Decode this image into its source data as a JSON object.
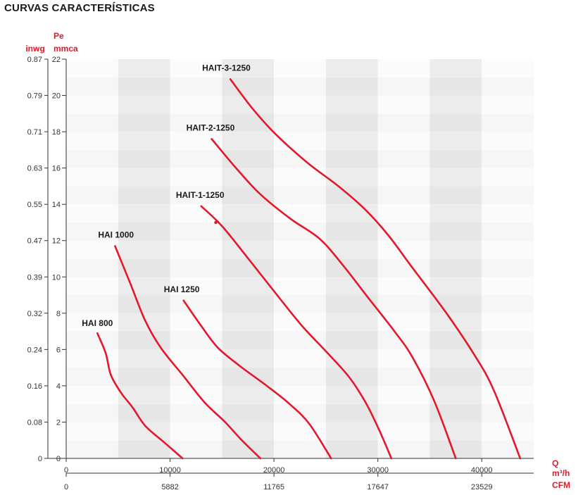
{
  "page_title": "CURVAS CARACTERÍSTICAS",
  "chart_data": {
    "type": "line",
    "y_left_unit": "inwg",
    "y_right_unit_top": "Pe",
    "y_right_unit_bottom": "mmca",
    "x_unit_top": "Q",
    "x_unit_mid": "m³/h",
    "x_unit_bottom": "CFM",
    "xlim": [
      0,
      45000
    ],
    "ylim": [
      0,
      22
    ],
    "grid": true,
    "y_ticks": [
      {
        "value": 0,
        "label": "0",
        "inwg": "0"
      },
      {
        "value": 2,
        "label": "2",
        "inwg": "0.08"
      },
      {
        "value": 4,
        "label": "4",
        "inwg": "0.16"
      },
      {
        "value": 6,
        "label": "6",
        "inwg": "0.24"
      },
      {
        "value": 8,
        "label": "8",
        "inwg": "0.32"
      },
      {
        "value": 10,
        "label": "10",
        "inwg": "0.39"
      },
      {
        "value": 12,
        "label": "12",
        "inwg": "0.47"
      },
      {
        "value": 14,
        "label": "14",
        "inwg": "0.55"
      },
      {
        "value": 16,
        "label": "16",
        "inwg": "0.63"
      },
      {
        "value": 18,
        "label": "18",
        "inwg": "0.71"
      },
      {
        "value": 20,
        "label": "20",
        "inwg": "0.79"
      },
      {
        "value": 22,
        "label": "22",
        "inwg": "0.87"
      }
    ],
    "x_ticks": [
      {
        "value": 0,
        "label": "0",
        "cfm": "0"
      },
      {
        "value": 10000,
        "label": "10000",
        "cfm": "5882"
      },
      {
        "value": 20000,
        "label": "20000",
        "cfm": "11765"
      },
      {
        "value": 30000,
        "label": "30000",
        "cfm": "17647"
      },
      {
        "value": 40000,
        "label": "40000",
        "cfm": "23529"
      }
    ],
    "series": [
      {
        "name": "HAI 800",
        "color": "#e3182d",
        "points": [
          [
            3000,
            6.9
          ],
          [
            3800,
            5.8
          ],
          [
            4300,
            4.6
          ],
          [
            5300,
            3.6
          ],
          [
            6400,
            2.8
          ],
          [
            7600,
            1.8
          ],
          [
            9400,
            0.9
          ],
          [
            11200,
            0
          ]
        ]
      },
      {
        "name": "HAI 1000",
        "color": "#e3182d",
        "points": [
          [
            4700,
            11.7
          ],
          [
            6200,
            9.6
          ],
          [
            7600,
            7.6
          ],
          [
            9100,
            6.1
          ],
          [
            11200,
            4.6
          ],
          [
            13300,
            3.1
          ],
          [
            15300,
            2.0
          ],
          [
            16900,
            1.0
          ],
          [
            18700,
            0
          ]
        ]
      },
      {
        "name": "HAI 1250",
        "color": "#e3182d",
        "points": [
          [
            11300,
            8.7
          ],
          [
            13000,
            7.3
          ],
          [
            14600,
            6.1
          ],
          [
            16700,
            5.1
          ],
          [
            19300,
            4.0
          ],
          [
            21500,
            3.0
          ],
          [
            23400,
            1.9
          ],
          [
            25500,
            0
          ]
        ]
      },
      {
        "name": "HAIT-1-1250",
        "color": "#e3182d",
        "points": [
          [
            13000,
            13.9
          ],
          [
            15000,
            12.8
          ],
          [
            17400,
            11.1
          ],
          [
            20300,
            9.0
          ],
          [
            22700,
            7.3
          ],
          [
            25000,
            5.9
          ],
          [
            27200,
            4.5
          ],
          [
            28800,
            3.1
          ],
          [
            30100,
            1.6
          ],
          [
            31300,
            0
          ]
        ]
      },
      {
        "name": "HAIT-2-1250",
        "color": "#e3182d",
        "points": [
          [
            14000,
            17.6
          ],
          [
            16200,
            16.1
          ],
          [
            18600,
            14.6
          ],
          [
            21600,
            13.2
          ],
          [
            24400,
            12.1
          ],
          [
            26700,
            10.6
          ],
          [
            29000,
            8.9
          ],
          [
            31600,
            7.0
          ],
          [
            33300,
            5.6
          ],
          [
            35400,
            3.2
          ],
          [
            37500,
            0
          ]
        ]
      },
      {
        "name": "HAIT-3-1250",
        "color": "#e3182d",
        "points": [
          [
            15800,
            20.9
          ],
          [
            17900,
            19.3
          ],
          [
            20100,
            17.9
          ],
          [
            23200,
            16.3
          ],
          [
            26200,
            15.0
          ],
          [
            28800,
            13.7
          ],
          [
            31000,
            12.3
          ],
          [
            33200,
            10.6
          ],
          [
            36600,
            8.0
          ],
          [
            39400,
            5.6
          ],
          [
            41200,
            3.7
          ],
          [
            43700,
            0
          ]
        ]
      }
    ]
  }
}
